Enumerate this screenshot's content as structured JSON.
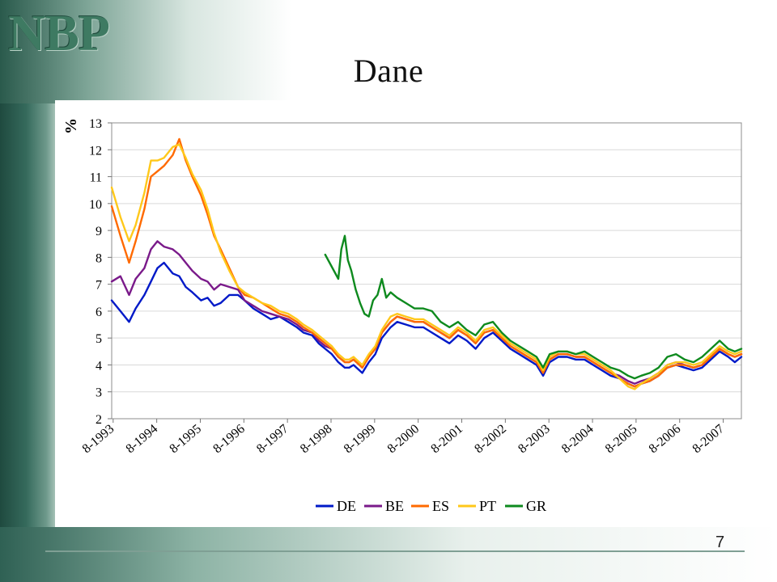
{
  "logo": {
    "text": "NBP"
  },
  "slide": {
    "title": "Dane",
    "page_number": "7"
  },
  "colors": {
    "DE": "#0019c8",
    "BE": "#7a1a8a",
    "ES": "#ff6a00",
    "PT": "#ffc81a",
    "GR": "#0e8a1e"
  },
  "chart_data": {
    "type": "line",
    "title": "",
    "xlabel": "",
    "ylabel": "%",
    "ylim": [
      2,
      13
    ],
    "xlim": [
      1993.55,
      2008.0
    ],
    "y_ticks": [
      "13",
      "12",
      "11",
      "10",
      "9",
      "8",
      "7",
      "6",
      "5",
      "4",
      "3",
      "2"
    ],
    "x_ticks": [
      "8-1993",
      "8-1994",
      "8-1995",
      "8-1996",
      "8-1997",
      "8-1998",
      "8-1999",
      "8-2000",
      "8-2001",
      "8-2002",
      "8-2003",
      "8-2004",
      "8-2005",
      "8-2006",
      "8-2007"
    ],
    "grid": "horizontal",
    "legend_position": "bottom",
    "series": [
      {
        "name": "DE",
        "x": [
          1993.55,
          1993.75,
          1993.95,
          1994.1,
          1994.3,
          1994.45,
          1994.6,
          1994.75,
          1994.95,
          1995.1,
          1995.25,
          1995.4,
          1995.6,
          1995.75,
          1995.9,
          1996.05,
          1996.25,
          1996.45,
          1996.6,
          1996.8,
          1997.0,
          1997.2,
          1997.4,
          1997.6,
          1997.8,
          1997.95,
          1998.15,
          1998.3,
          1998.45,
          1998.6,
          1998.75,
          1998.9,
          1999.0,
          1999.1,
          1999.3,
          1999.45,
          1999.6,
          1999.75,
          1999.95,
          2000.1,
          2000.3,
          2000.5,
          2000.7,
          2000.9,
          2001.1,
          2001.3,
          2001.5,
          2001.7,
          2001.9,
          2002.1,
          2002.3,
          2002.5,
          2002.7,
          2002.9,
          2003.1,
          2003.3,
          2003.45,
          2003.6,
          2003.8,
          2004.0,
          2004.2,
          2004.4,
          2004.6,
          2004.8,
          2005.0,
          2005.2,
          2005.4,
          2005.55,
          2005.7,
          2005.9,
          2006.1,
          2006.3,
          2006.5,
          2006.7,
          2006.9,
          2007.1,
          2007.3,
          2007.5,
          2007.7,
          2007.85,
          2008.0
        ],
        "values": [
          6.4,
          6.0,
          5.6,
          6.1,
          6.6,
          7.1,
          7.6,
          7.8,
          7.4,
          7.3,
          6.9,
          6.7,
          6.4,
          6.5,
          6.2,
          6.3,
          6.6,
          6.6,
          6.4,
          6.1,
          5.9,
          5.7,
          5.8,
          5.6,
          5.4,
          5.2,
          5.1,
          4.8,
          4.6,
          4.4,
          4.1,
          3.9,
          3.9,
          4.0,
          3.7,
          4.1,
          4.4,
          5.0,
          5.4,
          5.6,
          5.5,
          5.4,
          5.4,
          5.2,
          5.0,
          4.8,
          5.1,
          4.9,
          4.6,
          5.0,
          5.2,
          4.9,
          4.6,
          4.4,
          4.2,
          4.0,
          3.6,
          4.1,
          4.3,
          4.3,
          4.2,
          4.2,
          4.0,
          3.8,
          3.6,
          3.5,
          3.3,
          3.2,
          3.3,
          3.4,
          3.6,
          3.9,
          4.0,
          3.9,
          3.8,
          3.9,
          4.2,
          4.5,
          4.3,
          4.1,
          4.3
        ]
      },
      {
        "name": "BE",
        "x": [
          1993.55,
          1993.75,
          1993.95,
          1994.1,
          1994.3,
          1994.45,
          1994.6,
          1994.75,
          1994.95,
          1995.1,
          1995.25,
          1995.4,
          1995.6,
          1995.75,
          1995.9,
          1996.05,
          1996.25,
          1996.45,
          1996.6,
          1996.8,
          1997.0,
          1997.2,
          1997.4,
          1997.6,
          1997.8,
          1997.95,
          1998.15,
          1998.3,
          1998.45,
          1998.6,
          1998.75,
          1998.9,
          1999.0,
          1999.1,
          1999.3,
          1999.45,
          1999.6,
          1999.75,
          1999.95,
          2000.1,
          2000.3,
          2000.5,
          2000.7,
          2000.9,
          2001.1,
          2001.3,
          2001.5,
          2001.7,
          2001.9,
          2002.1,
          2002.3,
          2002.5,
          2002.7,
          2002.9,
          2003.1,
          2003.3,
          2003.45,
          2003.6,
          2003.8,
          2004.0,
          2004.2,
          2004.4,
          2004.6,
          2004.8,
          2005.0,
          2005.2,
          2005.4,
          2005.55,
          2005.7,
          2005.9,
          2006.1,
          2006.3,
          2006.5,
          2006.7,
          2006.9,
          2007.1,
          2007.3,
          2007.5,
          2007.7,
          2007.85,
          2008.0
        ],
        "values": [
          7.1,
          7.3,
          6.6,
          7.2,
          7.6,
          8.3,
          8.6,
          8.4,
          8.3,
          8.1,
          7.8,
          7.5,
          7.2,
          7.1,
          6.8,
          7.0,
          6.9,
          6.8,
          6.4,
          6.2,
          6.0,
          5.9,
          5.8,
          5.7,
          5.5,
          5.3,
          5.2,
          4.9,
          4.7,
          4.6,
          4.3,
          4.1,
          4.1,
          4.2,
          3.9,
          4.3,
          4.6,
          5.2,
          5.6,
          5.8,
          5.7,
          5.6,
          5.6,
          5.4,
          5.2,
          5.0,
          5.3,
          5.1,
          4.8,
          5.2,
          5.3,
          5.0,
          4.7,
          4.5,
          4.3,
          4.1,
          3.7,
          4.2,
          4.4,
          4.4,
          4.3,
          4.3,
          4.1,
          3.9,
          3.7,
          3.6,
          3.4,
          3.3,
          3.4,
          3.5,
          3.7,
          4.0,
          4.1,
          4.0,
          3.9,
          4.0,
          4.3,
          4.6,
          4.4,
          4.3,
          4.4
        ]
      },
      {
        "name": "ES",
        "x": [
          1993.55,
          1993.75,
          1993.95,
          1994.1,
          1994.3,
          1994.45,
          1994.6,
          1994.75,
          1994.95,
          1995.1,
          1995.25,
          1995.4,
          1995.6,
          1995.75,
          1995.9,
          1996.05,
          1996.25,
          1996.45,
          1996.6,
          1996.8,
          1997.0,
          1997.2,
          1997.4,
          1997.6,
          1997.8,
          1997.95,
          1998.15,
          1998.3,
          1998.45,
          1998.6,
          1998.75,
          1998.9,
          1999.0,
          1999.1,
          1999.3,
          1999.45,
          1999.6,
          1999.75,
          1999.95,
          2000.1,
          2000.3,
          2000.5,
          2000.7,
          2000.9,
          2001.1,
          2001.3,
          2001.5,
          2001.7,
          2001.9,
          2002.1,
          2002.3,
          2002.5,
          2002.7,
          2002.9,
          2003.1,
          2003.3,
          2003.45,
          2003.6,
          2003.8,
          2004.0,
          2004.2,
          2004.4,
          2004.6,
          2004.8,
          2005.0,
          2005.2,
          2005.4,
          2005.55,
          2005.7,
          2005.9,
          2006.1,
          2006.3,
          2006.5,
          2006.7,
          2006.9,
          2007.1,
          2007.3,
          2007.5,
          2007.7,
          2007.85,
          2008.0
        ],
        "values": [
          9.9,
          8.8,
          7.8,
          8.6,
          9.8,
          11.0,
          11.2,
          11.4,
          11.8,
          12.4,
          11.6,
          11.0,
          10.3,
          9.6,
          8.8,
          8.3,
          7.6,
          6.9,
          6.6,
          6.5,
          6.3,
          6.1,
          5.9,
          5.8,
          5.6,
          5.4,
          5.2,
          5.0,
          4.8,
          4.6,
          4.3,
          4.1,
          4.1,
          4.2,
          3.9,
          4.3,
          4.6,
          5.2,
          5.6,
          5.8,
          5.7,
          5.6,
          5.6,
          5.4,
          5.2,
          5.0,
          5.3,
          5.1,
          4.8,
          5.2,
          5.3,
          5.0,
          4.7,
          4.5,
          4.3,
          4.1,
          3.7,
          4.2,
          4.4,
          4.4,
          4.3,
          4.3,
          4.1,
          3.9,
          3.7,
          3.5,
          3.3,
          3.2,
          3.3,
          3.4,
          3.6,
          3.9,
          4.0,
          4.0,
          3.9,
          4.0,
          4.3,
          4.6,
          4.4,
          4.3,
          4.4
        ]
      },
      {
        "name": "PT",
        "x": [
          1993.55,
          1993.75,
          1993.95,
          1994.1,
          1994.3,
          1994.45,
          1994.6,
          1994.75,
          1994.95,
          1995.1,
          1995.25,
          1995.4,
          1995.6,
          1995.75,
          1995.9,
          1996.05,
          1996.25,
          1996.45,
          1996.6,
          1996.8,
          1997.0,
          1997.2,
          1997.4,
          1997.6,
          1997.8,
          1997.95,
          1998.15,
          1998.3,
          1998.45,
          1998.6,
          1998.75,
          1998.9,
          1999.0,
          1999.1,
          1999.3,
          1999.45,
          1999.6,
          1999.75,
          1999.95,
          2000.1,
          2000.3,
          2000.5,
          2000.7,
          2000.9,
          2001.1,
          2001.3,
          2001.5,
          2001.7,
          2001.9,
          2002.1,
          2002.3,
          2002.5,
          2002.7,
          2002.9,
          2003.1,
          2003.3,
          2003.45,
          2003.6,
          2003.8,
          2004.0,
          2004.2,
          2004.4,
          2004.6,
          2004.8,
          2005.0,
          2005.2,
          2005.4,
          2005.55,
          2005.7,
          2005.9,
          2006.1,
          2006.3,
          2006.5,
          2006.7,
          2006.9,
          2007.1,
          2007.3,
          2007.5,
          2007.7,
          2007.85,
          2008.0
        ],
        "values": [
          10.6,
          9.5,
          8.6,
          9.2,
          10.4,
          11.6,
          11.6,
          11.7,
          12.1,
          12.2,
          11.7,
          11.1,
          10.5,
          9.8,
          8.9,
          8.2,
          7.5,
          6.9,
          6.7,
          6.5,
          6.3,
          6.2,
          6.0,
          5.9,
          5.7,
          5.5,
          5.3,
          5.1,
          4.9,
          4.7,
          4.4,
          4.2,
          4.2,
          4.3,
          4.0,
          4.4,
          4.7,
          5.3,
          5.8,
          5.9,
          5.8,
          5.7,
          5.7,
          5.5,
          5.3,
          5.1,
          5.4,
          5.2,
          4.9,
          5.3,
          5.4,
          5.1,
          4.8,
          4.6,
          4.4,
          4.2,
          3.8,
          4.3,
          4.5,
          4.5,
          4.4,
          4.4,
          4.2,
          4.0,
          3.8,
          3.5,
          3.2,
          3.1,
          3.3,
          3.5,
          3.7,
          4.0,
          4.1,
          4.1,
          4.0,
          4.1,
          4.4,
          4.7,
          4.5,
          4.4,
          4.5
        ]
      },
      {
        "name": "GR",
        "x": [
          1998.45,
          1998.55,
          1998.65,
          1998.75,
          1998.82,
          1998.9,
          1998.97,
          1999.05,
          1999.15,
          1999.25,
          1999.35,
          1999.45,
          1999.55,
          1999.65,
          1999.75,
          1999.85,
          1999.95,
          2000.1,
          2000.3,
          2000.5,
          2000.7,
          2000.9,
          2001.1,
          2001.3,
          2001.5,
          2001.7,
          2001.9,
          2002.1,
          2002.3,
          2002.5,
          2002.7,
          2002.9,
          2003.1,
          2003.3,
          2003.45,
          2003.6,
          2003.8,
          2004.0,
          2004.2,
          2004.4,
          2004.6,
          2004.8,
          2005.0,
          2005.2,
          2005.4,
          2005.55,
          2005.7,
          2005.9,
          2006.1,
          2006.3,
          2006.5,
          2006.7,
          2006.9,
          2007.1,
          2007.3,
          2007.5,
          2007.7,
          2007.85,
          2008.0
        ],
        "values": [
          8.1,
          7.8,
          7.5,
          7.2,
          8.3,
          8.8,
          7.9,
          7.5,
          6.8,
          6.3,
          5.9,
          5.8,
          6.4,
          6.6,
          7.2,
          6.5,
          6.7,
          6.5,
          6.3,
          6.1,
          6.1,
          6.0,
          5.6,
          5.4,
          5.6,
          5.3,
          5.1,
          5.5,
          5.6,
          5.2,
          4.9,
          4.7,
          4.5,
          4.3,
          3.9,
          4.4,
          4.5,
          4.5,
          4.4,
          4.5,
          4.3,
          4.1,
          3.9,
          3.8,
          3.6,
          3.5,
          3.6,
          3.7,
          3.9,
          4.3,
          4.4,
          4.2,
          4.1,
          4.3,
          4.6,
          4.9,
          4.6,
          4.5,
          4.6
        ]
      }
    ]
  }
}
